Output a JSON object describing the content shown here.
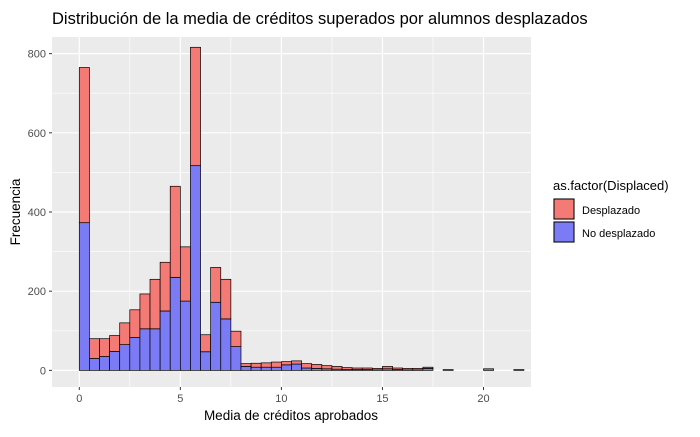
{
  "chart_data": {
    "type": "bar",
    "stacked": true,
    "title": "Distribución de la media de créditos superados por alumnos desplazados",
    "xlabel": "Media de créditos aprobados",
    "ylabel": "Frecuencia",
    "xlim": [
      -1.35,
      22.35
    ],
    "ylim": [
      -42,
      842
    ],
    "x_ticks": [
      0,
      5,
      10,
      15,
      20
    ],
    "y_ticks": [
      0,
      200,
      400,
      600,
      800
    ],
    "grid": true,
    "legend_position": "right",
    "bin_width": 0.5,
    "bin_starts": [
      0,
      0.5,
      1,
      1.5,
      2,
      2.5,
      3,
      3.5,
      4,
      4.5,
      5,
      5.5,
      6,
      6.5,
      7,
      7.5,
      8,
      8.5,
      9,
      9.5,
      10,
      10.5,
      11,
      11.5,
      12,
      12.5,
      13,
      13.5,
      14,
      14.5,
      15,
      15.5,
      16,
      16.5,
      17,
      17.5,
      18,
      18.5,
      19,
      19.5,
      20,
      20.5,
      21,
      21.5
    ],
    "series": [
      {
        "name": "No desplazado",
        "color": "#7b7bf5",
        "values": [
          373,
          30,
          35,
          48,
          65,
          83,
          105,
          105,
          150,
          235,
          175,
          517,
          47,
          172,
          130,
          60,
          10,
          8,
          8,
          8,
          14,
          16,
          6,
          5,
          4,
          3,
          2,
          2,
          2,
          1,
          4,
          2,
          1,
          1,
          5,
          0,
          2,
          0,
          0,
          0,
          4,
          0,
          0,
          2
        ]
      },
      {
        "name": "Desplazado",
        "color": "#f47a76",
        "values": [
          392,
          50,
          45,
          40,
          55,
          70,
          88,
          125,
          123,
          230,
          137,
          299,
          43,
          88,
          100,
          39,
          7,
          10,
          11,
          13,
          8,
          8,
          11,
          10,
          8,
          7,
          5,
          4,
          4,
          4,
          6,
          4,
          4,
          4,
          3,
          0,
          0,
          0,
          0,
          0,
          0,
          0,
          0,
          0
        ]
      }
    ],
    "legend": {
      "title": "as.factor(Displaced)",
      "items": [
        "Desplazado",
        "No desplazado"
      ]
    }
  }
}
